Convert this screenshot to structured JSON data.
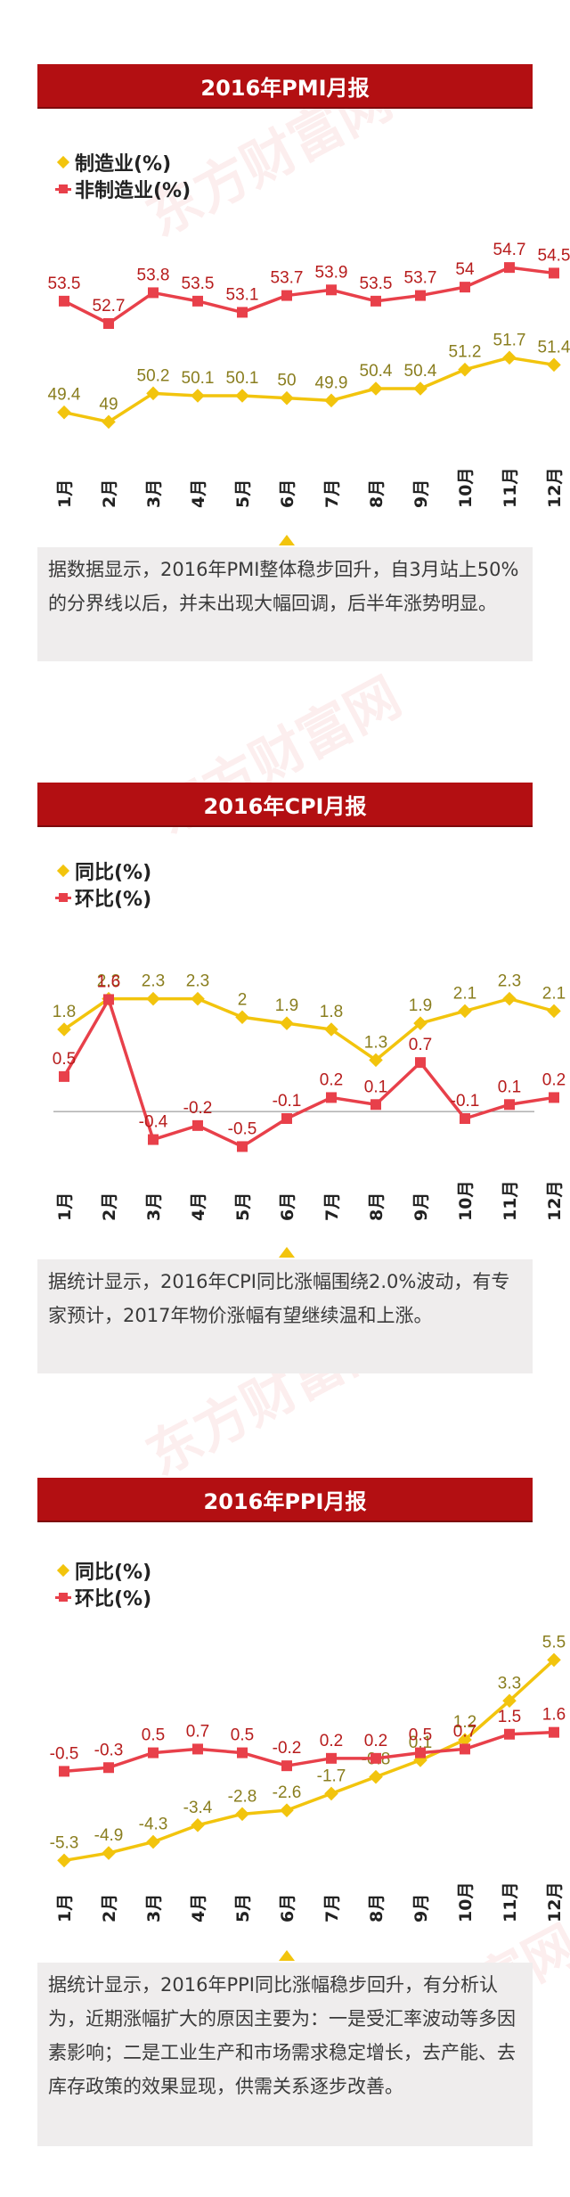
{
  "watermark_text": "东方财富网",
  "colors": {
    "red": "#e8404a",
    "yellow": "#f2c40d",
    "title_bg": "#b30f12",
    "label_yellow": "#8a7e1f",
    "label_red": "#b71c1c"
  },
  "panels": [
    {
      "title": "2016年PMI月报",
      "caption": "据数据显示，2016年PMI整体稳步回升，自3月站上50%的分界线以后，并未出现大幅回调，后半年涨势明显。"
    },
    {
      "title": "2016年CPI月报",
      "caption": "据统计显示，2016年CPI同比涨幅围绕2.0%波动，有专家预计，2017年物价涨幅有望继续温和上涨。"
    },
    {
      "title": "2016年PPI月报",
      "caption": "据统计显示，2016年PPI同比涨幅稳步回升，有分析认为，近期涨幅扩大的原因主要为：一是受汇率波动等多因素影响；二是工业生产和市场需求稳定增长，去产能、去库存政策的效果显现，供需关系逐步改善。"
    }
  ],
  "chart_data": [
    {
      "type": "line",
      "title": "2016年PMI月报",
      "categories": [
        "1月",
        "2月",
        "3月",
        "4月",
        "5月",
        "6月",
        "7月",
        "8月",
        "9月",
        "10月",
        "11月",
        "12月"
      ],
      "series": [
        {
          "name": "制造业(%)",
          "color": "#f2c40d",
          "marker": "diamond",
          "values": [
            49.4,
            49,
            50.2,
            50.1,
            50.1,
            50,
            49.9,
            50.4,
            50.4,
            51.2,
            51.7,
            51.4
          ]
        },
        {
          "name": "非制造业(%)",
          "color": "#e8404a",
          "marker": "square",
          "values": [
            53.5,
            52.7,
            53.8,
            53.5,
            53.1,
            53.7,
            53.9,
            53.5,
            53.7,
            54,
            54.7,
            54.5
          ]
        }
      ],
      "grid": false
    },
    {
      "type": "line",
      "title": "2016年CPI月报",
      "categories": [
        "1月",
        "2月",
        "3月",
        "4月",
        "5月",
        "6月",
        "7月",
        "8月",
        "9月",
        "10月",
        "11月",
        "12月"
      ],
      "series": [
        {
          "name": "同比(%)",
          "color": "#f2c40d",
          "marker": "diamond",
          "values": [
            1.8,
            2.3,
            2.3,
            2.3,
            2,
            1.9,
            1.8,
            1.3,
            1.9,
            2.1,
            2.3,
            2.1
          ]
        },
        {
          "name": "环比(%)",
          "color": "#e8404a",
          "marker": "square",
          "values": [
            0.5,
            1.6,
            -0.4,
            -0.2,
            -0.5,
            -0.1,
            0.2,
            0.1,
            0.7,
            -0.1,
            0.1,
            0.2
          ]
        }
      ],
      "grid": false
    },
    {
      "type": "line",
      "title": "2016年PPI月报",
      "categories": [
        "1月",
        "2月",
        "3月",
        "4月",
        "5月",
        "6月",
        "7月",
        "8月",
        "9月",
        "10月",
        "11月",
        "12月"
      ],
      "series": [
        {
          "name": "同比(%)",
          "color": "#f2c40d",
          "marker": "diamond",
          "values": [
            -5.3,
            -4.9,
            -4.3,
            -3.4,
            -2.8,
            -2.6,
            -1.7,
            -0.8,
            0.1,
            1.2,
            3.3,
            5.5
          ]
        },
        {
          "name": "环比(%)",
          "color": "#e8404a",
          "marker": "square",
          "values": [
            -0.5,
            -0.3,
            0.5,
            0.7,
            0.5,
            -0.2,
            0.2,
            0.2,
            0.5,
            0.7,
            1.5,
            1.6
          ]
        }
      ],
      "grid": false
    }
  ]
}
